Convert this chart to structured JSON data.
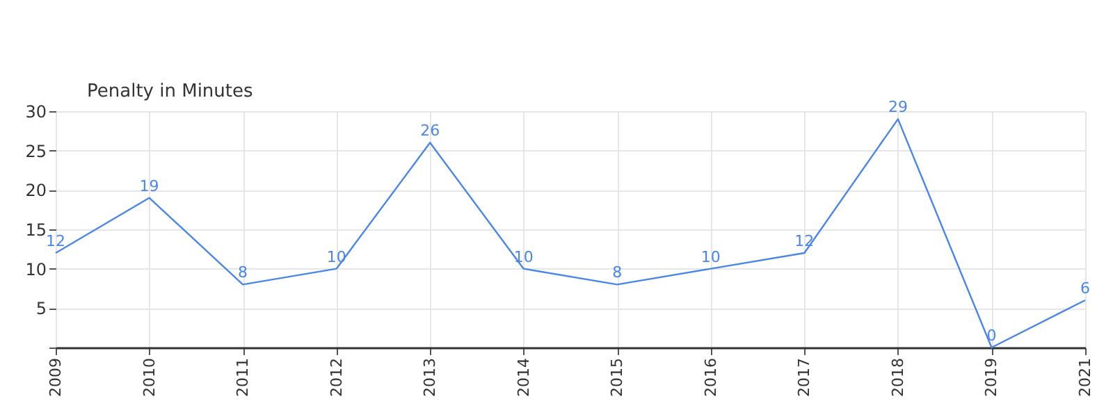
{
  "chart_data": {
    "type": "line",
    "ylabel": "Penalty in Minutes",
    "categories": [
      "2009",
      "2010",
      "2011",
      "2012",
      "2013",
      "2014",
      "2015",
      "2016",
      "2017",
      "2018",
      "2019",
      "2021"
    ],
    "series": [
      {
        "color": "#4a86e8",
        "values": [
          12,
          19,
          8,
          10,
          26,
          10,
          8,
          10,
          12,
          29,
          0,
          6
        ]
      }
    ],
    "ylim": [
      0,
      30
    ],
    "yticks": [
      {
        "value": 0,
        "label": null
      },
      5,
      10,
      15,
      20,
      25,
      30
    ],
    "grid": true,
    "data_labels": true,
    "marker": "none",
    "line_style": "solid",
    "legend": false
  }
}
